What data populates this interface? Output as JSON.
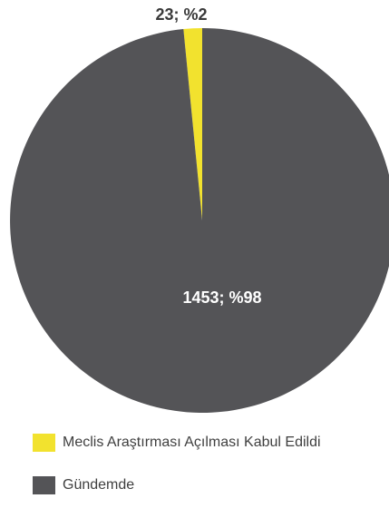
{
  "chart_data": {
    "type": "pie",
    "title": "",
    "slices": [
      {
        "label": "Meclis Araştırması Açılması Kabul Edildi",
        "value": 23,
        "data_label": "23; %2",
        "color": "#f2e22e"
      },
      {
        "label": "Gündemde",
        "value": 1453,
        "data_label": "1453; %98",
        "color": "#545457"
      }
    ],
    "legend_placement": "bottom-left"
  }
}
